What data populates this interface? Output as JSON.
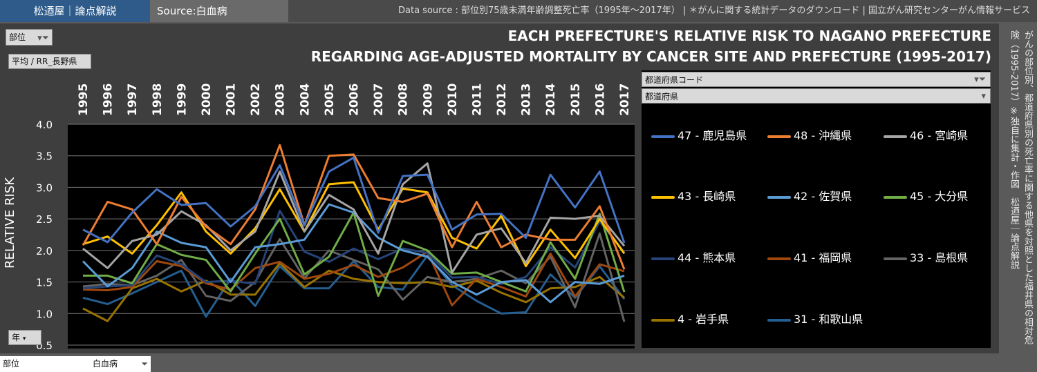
{
  "header": {
    "brand": "松迺屋｜論点解説",
    "source": "Source:白血病",
    "datasource": "Data source : 部位別75歳未満年齢調整死亡率（1995年～2017年） | ＊がんに関する統計データのダウンロード | 国立がん研究センターがん情報サービス"
  },
  "controls": {
    "field_pill": "部位",
    "measure_pill": "平均 / RR_長野県",
    "year_pill": "年",
    "pref_code_filter": "都道府県コード",
    "pref_filter": "都道府県"
  },
  "footer": {
    "label": "部位",
    "value": "白血病"
  },
  "side_note": "がんの部位別、都道府県別の死亡率に関する他県を対照とした福井県の相対危険（1995-2017）※独自に集計・作図　松迺屋｜論点解説",
  "colors": {
    "p47": "#4472c4",
    "p48": "#ed7d31",
    "p46": "#a5a5a5",
    "p43": "#ffc000",
    "p42": "#5b9bd5",
    "p45": "#70ad47",
    "p44": "#264478",
    "p41": "#9e480e",
    "p33": "#636363",
    "p4": "#997300",
    "p31": "#255e91"
  },
  "chart_data": {
    "type": "line",
    "title": "EACH PREFECTURE'S RELATIVE RISK TO NAGANO PREFECTURE",
    "subtitle": "REGARDING AGE-ADJUSTED MORTALITY BY CANCER SITE AND PREFECTURE (1995-2017)",
    "ylabel": "RELATIVE RISK",
    "xlabel": "",
    "ylim": [
      0.5,
      4.0
    ],
    "yticks": [
      "4.0",
      "3.5",
      "3.0",
      "2.5",
      "2.0",
      "1.5",
      "1.0",
      "0.5"
    ],
    "grid": true,
    "legend_position": "right",
    "x": [
      "1995",
      "1996",
      "1997",
      "1998",
      "1999",
      "2000",
      "2001",
      "2002",
      "2003",
      "2004",
      "2005",
      "2006",
      "2007",
      "2008",
      "2009",
      "2010",
      "2011",
      "2012",
      "2013",
      "2014",
      "2015",
      "2016",
      "2017"
    ],
    "series": [
      {
        "name": "47 - 鹿児島県",
        "color_key": "p47",
        "values": [
          2.33,
          2.13,
          2.6,
          2.97,
          2.72,
          2.75,
          2.38,
          2.7,
          3.35,
          2.4,
          3.25,
          3.47,
          2.28,
          3.18,
          3.2,
          2.33,
          2.57,
          2.58,
          2.2,
          3.2,
          2.68,
          3.25,
          2.12
        ]
      },
      {
        "name": "48 - 沖縄県",
        "color_key": "p48",
        "values": [
          2.08,
          2.77,
          2.65,
          2.1,
          2.85,
          2.38,
          2.1,
          2.65,
          3.67,
          2.4,
          3.5,
          3.52,
          2.83,
          2.77,
          2.9,
          2.05,
          2.77,
          2.05,
          2.25,
          2.17,
          2.17,
          2.7,
          1.7
        ]
      },
      {
        "name": "46 - 宮崎県",
        "color_key": "p46",
        "values": [
          2.03,
          1.72,
          2.15,
          2.25,
          2.62,
          2.4,
          2.0,
          2.3,
          3.25,
          2.3,
          2.88,
          2.65,
          1.95,
          3.05,
          3.38,
          1.65,
          2.25,
          2.35,
          1.8,
          2.52,
          2.5,
          2.55,
          2.07
        ]
      },
      {
        "name": "43 - 長崎県",
        "color_key": "p43",
        "values": [
          2.1,
          2.22,
          1.95,
          2.4,
          2.92,
          2.3,
          1.95,
          2.35,
          2.97,
          2.3,
          3.05,
          3.08,
          2.33,
          2.98,
          2.92,
          2.2,
          2.03,
          2.55,
          1.75,
          2.33,
          1.88,
          2.5,
          1.95
        ]
      },
      {
        "name": "42 - 佐賀県",
        "color_key": "p42",
        "values": [
          1.83,
          1.43,
          1.72,
          2.3,
          2.12,
          2.05,
          1.5,
          2.05,
          2.1,
          2.17,
          2.73,
          2.6,
          2.2,
          2.0,
          1.9,
          1.5,
          1.3,
          1.5,
          1.53,
          1.18,
          1.5,
          1.47,
          1.6
        ]
      },
      {
        "name": "45 - 大分県",
        "color_key": "p45",
        "values": [
          1.6,
          1.6,
          1.48,
          2.1,
          1.93,
          1.85,
          1.35,
          1.95,
          2.5,
          1.62,
          1.9,
          2.6,
          1.28,
          2.15,
          2.0,
          1.63,
          1.65,
          1.5,
          1.35,
          2.13,
          1.55,
          2.58,
          1.34
        ]
      },
      {
        "name": "44 - 熊本県",
        "color_key": "p44",
        "values": [
          1.4,
          1.43,
          1.45,
          1.92,
          1.78,
          1.5,
          1.52,
          1.47,
          2.63,
          1.98,
          1.82,
          2.03,
          1.86,
          2.03,
          1.96,
          1.57,
          1.58,
          1.47,
          1.58,
          2.05,
          1.73,
          2.46,
          1.97
        ]
      },
      {
        "name": "41 - 福岡県",
        "color_key": "p41",
        "values": [
          1.38,
          1.37,
          1.42,
          1.83,
          1.75,
          1.48,
          1.38,
          1.72,
          1.82,
          1.55,
          1.63,
          1.77,
          1.58,
          1.73,
          1.98,
          1.13,
          1.55,
          1.42,
          1.27,
          1.95,
          1.27,
          1.78,
          1.67
        ]
      },
      {
        "name": "33 - 島根県",
        "color_key": "p33",
        "values": [
          1.43,
          1.47,
          1.45,
          1.6,
          1.85,
          1.28,
          1.2,
          1.5,
          2.18,
          1.56,
          2.0,
          1.85,
          1.7,
          1.22,
          1.58,
          1.5,
          1.55,
          1.68,
          1.48,
          1.9,
          1.1,
          2.27,
          0.87
        ]
      },
      {
        "name": "4 - 岩手県",
        "color_key": "p4",
        "values": [
          1.08,
          0.88,
          1.4,
          1.55,
          1.35,
          1.52,
          1.3,
          1.3,
          1.8,
          1.42,
          1.68,
          1.55,
          1.5,
          1.48,
          1.5,
          1.42,
          1.52,
          1.33,
          1.18,
          1.4,
          1.42,
          1.58,
          1.25
        ]
      },
      {
        "name": "31 - 和歌山県",
        "color_key": "p31",
        "values": [
          1.25,
          1.15,
          1.32,
          1.5,
          1.68,
          0.95,
          1.55,
          1.12,
          1.75,
          1.4,
          1.4,
          1.83,
          1.42,
          1.38,
          1.92,
          1.45,
          1.2,
          1.0,
          1.02,
          1.62,
          1.25,
          1.75,
          1.23
        ]
      }
    ]
  }
}
